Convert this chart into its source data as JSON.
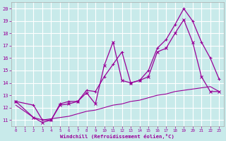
{
  "background_color": "#c8eaea",
  "grid_color": "#ffffff",
  "line_color": "#990099",
  "xlabel": "Windchill (Refroidissement éolien,°C)",
  "xlim": [
    -0.5,
    23.5
  ],
  "ylim": [
    10.5,
    20.5
  ],
  "xticks": [
    0,
    1,
    2,
    3,
    4,
    5,
    6,
    7,
    8,
    9,
    10,
    11,
    12,
    13,
    14,
    15,
    16,
    17,
    18,
    19,
    20,
    21,
    22,
    23
  ],
  "yticks": [
    11,
    12,
    13,
    14,
    15,
    16,
    17,
    18,
    19,
    20
  ],
  "series1_x": [
    0,
    2,
    3,
    4,
    5,
    6,
    7,
    8,
    9,
    10,
    11,
    12,
    13,
    14,
    15,
    16,
    17,
    18,
    19,
    20,
    21,
    22,
    23
  ],
  "series1_y": [
    12.5,
    12.2,
    11.0,
    11.0,
    12.3,
    12.5,
    12.5,
    13.4,
    13.3,
    14.5,
    15.5,
    16.5,
    14.0,
    14.2,
    15.0,
    16.8,
    17.5,
    18.7,
    20.0,
    19.0,
    17.3,
    16.0,
    14.3
  ],
  "series2_x": [
    0,
    2,
    3,
    4,
    5,
    6,
    7,
    8,
    9,
    10,
    11,
    12,
    13,
    14,
    15,
    16,
    17,
    18,
    19,
    20,
    21,
    22,
    23
  ],
  "series2_y": [
    12.5,
    11.2,
    10.8,
    11.0,
    12.2,
    12.3,
    12.5,
    13.2,
    12.3,
    15.4,
    17.3,
    14.2,
    14.0,
    14.2,
    14.5,
    16.5,
    16.8,
    18.0,
    19.1,
    17.3,
    14.5,
    13.3,
    13.3
  ],
  "series3_x": [
    0,
    2,
    3,
    4,
    5,
    6,
    7,
    8,
    9,
    10,
    11,
    12,
    13,
    14,
    15,
    16,
    17,
    18,
    19,
    20,
    21,
    22,
    23
  ],
  "series3_y": [
    12.2,
    11.2,
    11.0,
    11.1,
    11.2,
    11.3,
    11.5,
    11.7,
    11.8,
    12.0,
    12.2,
    12.3,
    12.5,
    12.6,
    12.8,
    13.0,
    13.1,
    13.3,
    13.4,
    13.5,
    13.6,
    13.7,
    13.3
  ]
}
